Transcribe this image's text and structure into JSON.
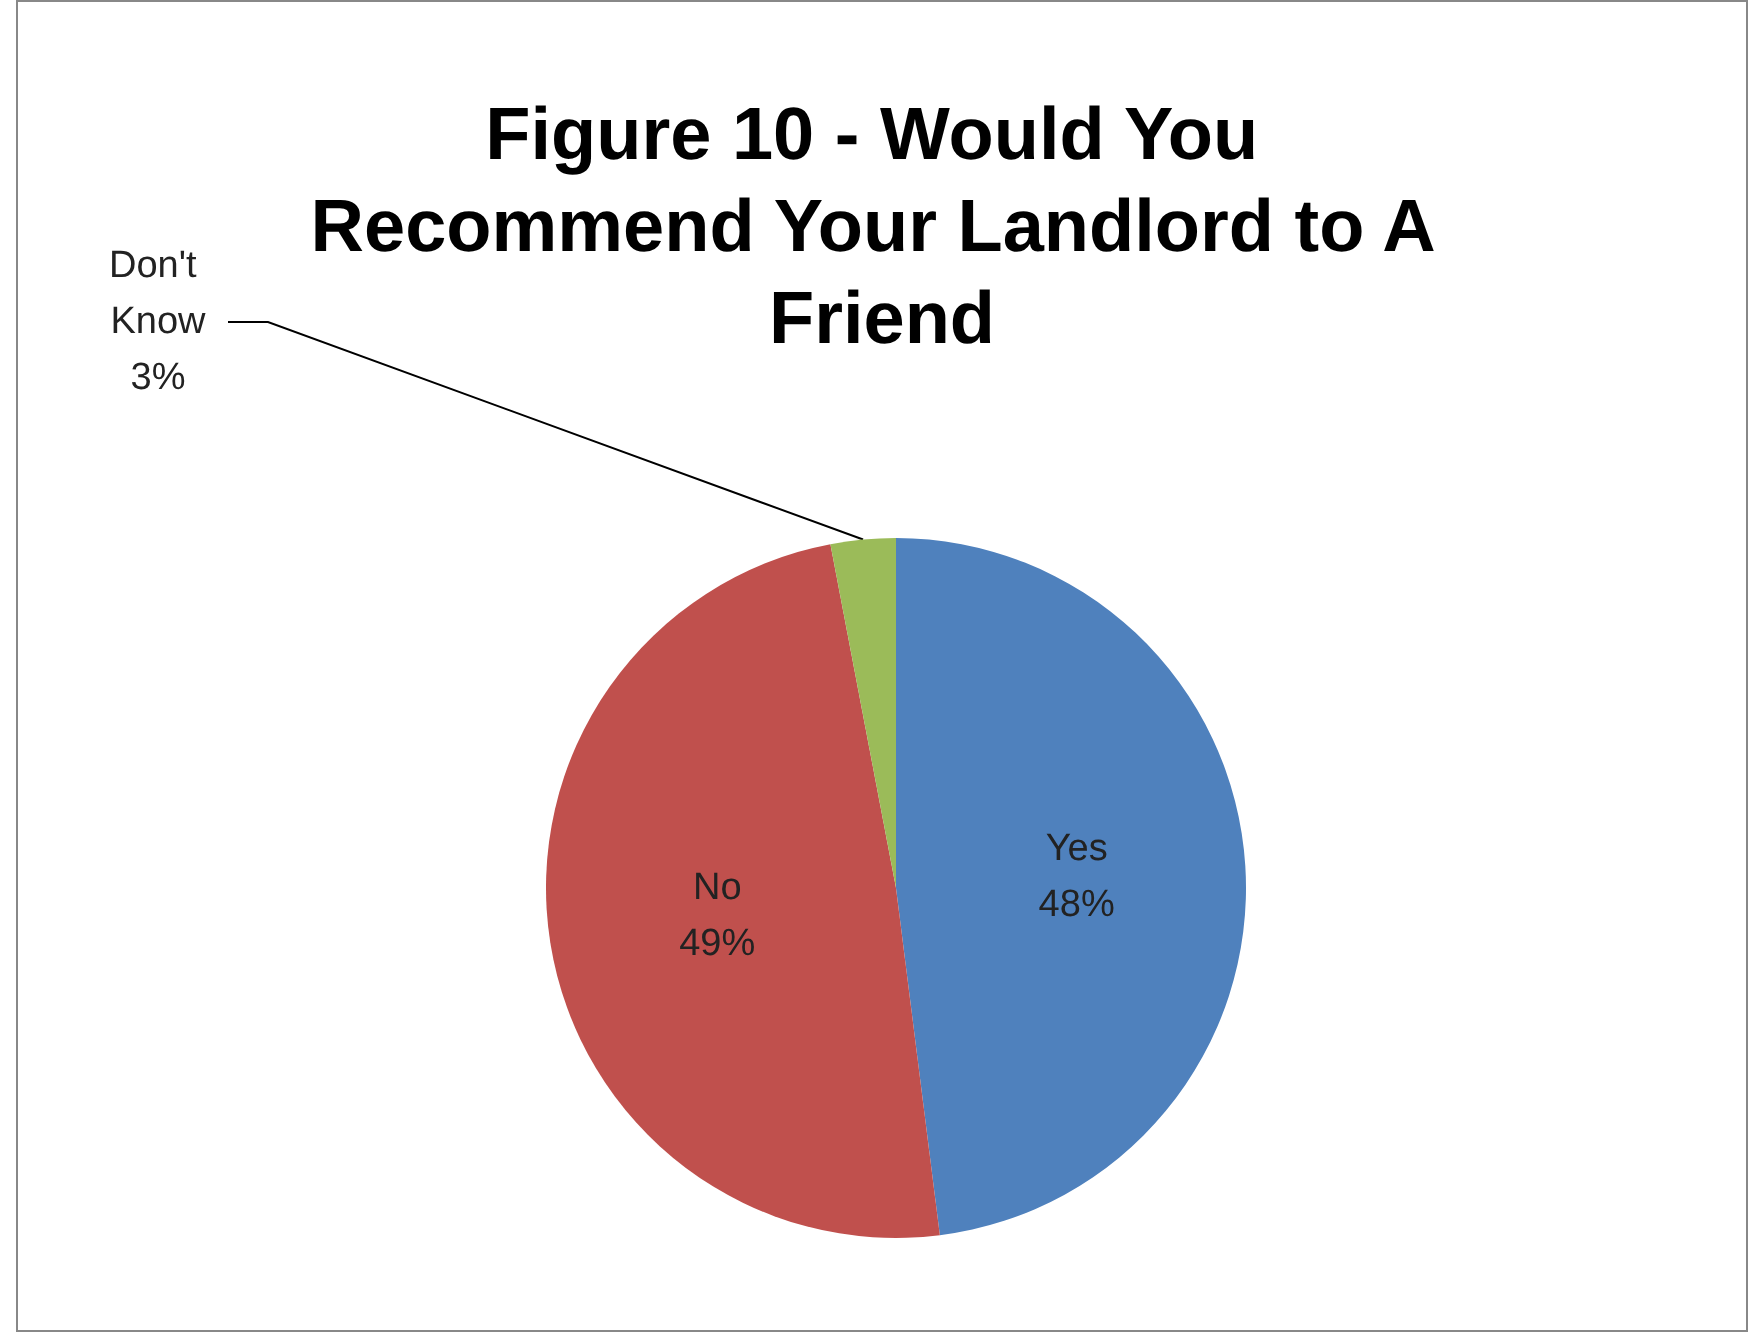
{
  "chart_data": {
    "type": "pie",
    "title": "Figure 10 - Would You Recommend Your Landlord to A Friend",
    "categories": [
      "Yes",
      "No",
      "Don't Know"
    ],
    "values": [
      48,
      49,
      3
    ],
    "colors": [
      "#4f81bd",
      "#c0504d",
      "#9bbb59"
    ],
    "value_labels": [
      "48%",
      "49%",
      "3%"
    ],
    "legend": false
  }
}
